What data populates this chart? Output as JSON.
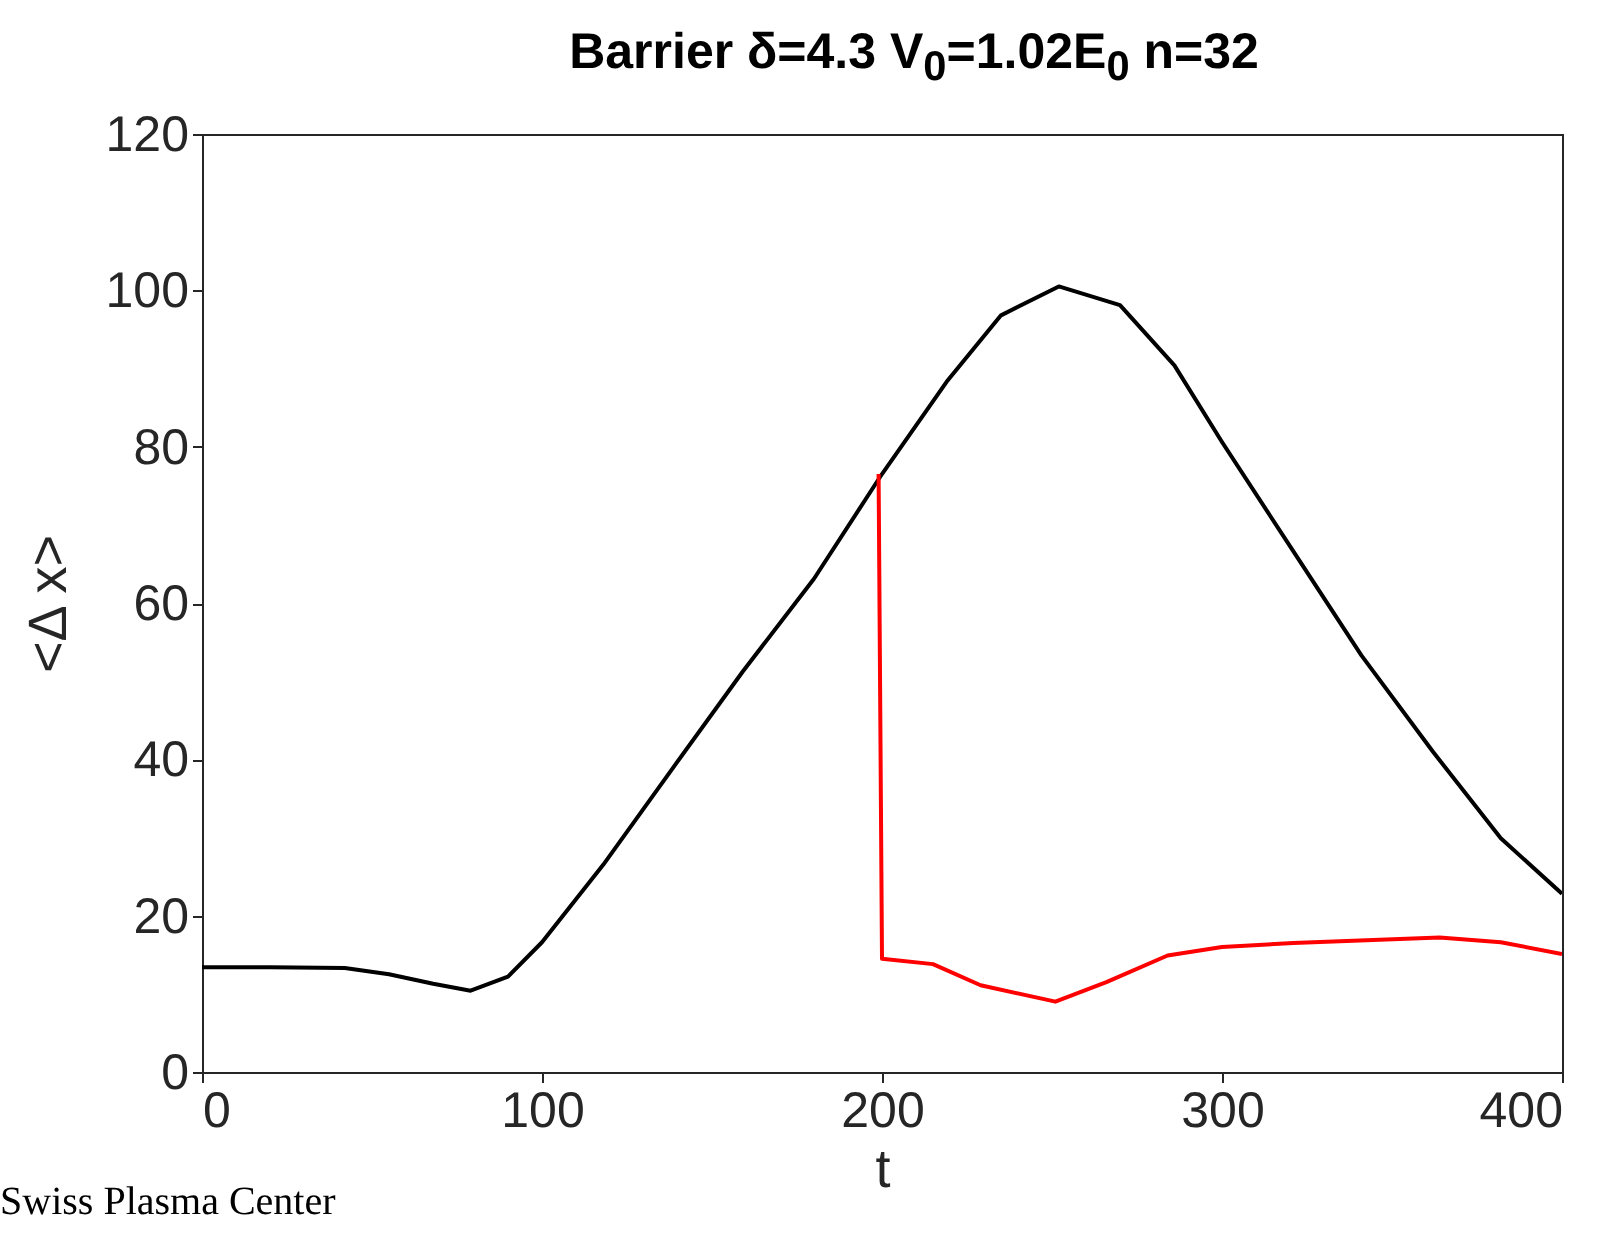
{
  "chart_data": {
    "type": "line",
    "title": "Barrier δ=4.3 V$_{0}$=1.02E$_{0}$  n=32",
    "xlabel": "t",
    "ylabel": "<Δ x>",
    "xlim": [
      0,
      400
    ],
    "ylim": [
      0,
      120
    ],
    "xticks": [
      0,
      100,
      200,
      300,
      400
    ],
    "yticks": [
      0,
      20,
      40,
      60,
      80,
      100,
      120
    ],
    "annotations": [
      "Swiss Plasma Center"
    ],
    "series": [
      {
        "color": "#000000",
        "x": [
          0,
          20,
          42,
          55,
          68,
          79,
          90,
          100,
          118,
          139,
          159,
          180,
          200,
          219,
          235,
          252,
          270,
          286,
          300,
          321,
          341,
          362,
          382,
          400
        ],
        "values": [
          13.4,
          13.4,
          13.3,
          12.5,
          11.3,
          10.4,
          12.2,
          16.6,
          26.5,
          39.2,
          51.2,
          63.1,
          76.5,
          88.3,
          96.8,
          100.5,
          98.1,
          90.4,
          80.6,
          66.6,
          53.3,
          41,
          29.9,
          22.8
        ]
      },
      {
        "color": "#ff0000",
        "x": [
          199,
          200,
          215,
          229,
          251,
          266,
          284,
          300,
          321,
          364,
          382,
          400
        ],
        "values": [
          76.5,
          14.5,
          13.8,
          11.1,
          9.0,
          11.5,
          14.9,
          16.0,
          16.5,
          17.2,
          16.6,
          15.1
        ]
      }
    ]
  }
}
